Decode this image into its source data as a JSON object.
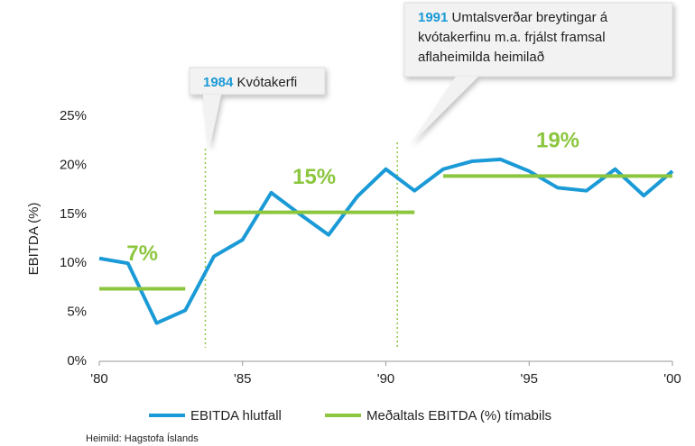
{
  "chart_data": {
    "type": "line",
    "y_label": "EBITDA (%)",
    "x": [
      1980,
      1981,
      1982,
      1983,
      1984,
      1985,
      1986,
      1987,
      1988,
      1989,
      1990,
      1991,
      1992,
      1993,
      1994,
      1995,
      1996,
      1997,
      1998,
      1999,
      2000
    ],
    "xlim": [
      1980,
      2000
    ],
    "xticks": [
      {
        "value": 1980,
        "label": "'80"
      },
      {
        "value": 1985,
        "label": "'85"
      },
      {
        "value": 1990,
        "label": "'90"
      },
      {
        "value": 1995,
        "label": "'95"
      },
      {
        "value": 2000,
        "label": "'00"
      }
    ],
    "ylim": [
      0,
      25
    ],
    "yticks": [
      {
        "value": 0,
        "label": "0%"
      },
      {
        "value": 5,
        "label": "5%"
      },
      {
        "value": 10,
        "label": "10%"
      },
      {
        "value": 15,
        "label": "15%"
      },
      {
        "value": 20,
        "label": "20%"
      },
      {
        "value": 25,
        "label": "25%"
      }
    ],
    "series": [
      {
        "name": "EBITDA hlutfall",
        "color": "#1a9ad6",
        "values": [
          10.5,
          10.0,
          3.9,
          5.2,
          10.7,
          12.4,
          17.2,
          15.0,
          12.9,
          16.8,
          19.6,
          17.4,
          19.6,
          20.4,
          20.6,
          19.4,
          17.7,
          17.4,
          19.6,
          16.9,
          19.4
        ]
      },
      {
        "name": "Meðaltals EBITDA (%) tímabils",
        "color": "#8cc63f",
        "periods": [
          {
            "x": [
              1980,
              1983
            ],
            "value": 7.4,
            "value_label": "7%"
          },
          {
            "x": [
              1984,
              1991
            ],
            "value": 15.2,
            "value_label": "15%"
          },
          {
            "x": [
              1992,
              2000
            ],
            "value": 18.9,
            "value_label": "19%"
          }
        ]
      }
    ],
    "annotations": [
      {
        "x": 1983.7,
        "year": "1984",
        "lines": [
          "Kvótakerfi"
        ]
      },
      {
        "x": 1990.4,
        "year": "1991",
        "lines": [
          "Umtalsverðar breytingar á",
          "kvótakerfinu m.a. frjálst framsal",
          "aflaheimilda heimilað"
        ]
      }
    ],
    "source": "Heimild: Hagstofa Íslands"
  }
}
